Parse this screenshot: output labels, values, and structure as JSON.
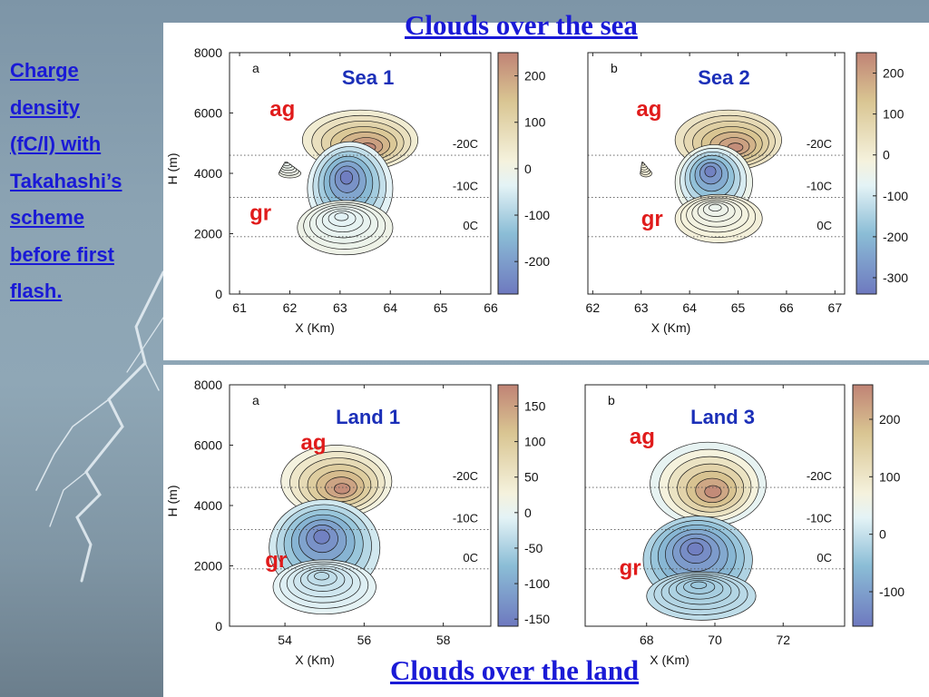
{
  "sidebar": {
    "title": "Charge\ndensity\n(fC/l) with\nTakahashi’s\nscheme\nbefore first\nflash."
  },
  "headings": {
    "top": "Clouds over the sea",
    "bottom": "Clouds over the land"
  },
  "chart_data": [
    {
      "type": "heatmap",
      "subplot_letter": "a",
      "label": "Sea 1",
      "xlabel": "X (Km)",
      "ylabel": "H (m)",
      "xlim": [
        60.8,
        66.0
      ],
      "ylim": [
        0,
        8000
      ],
      "xticks": [
        61,
        62,
        63,
        64,
        65,
        66
      ],
      "yticks": [
        0,
        2000,
        4000,
        6000,
        8000
      ],
      "colorbar": {
        "min": -270,
        "max": 250,
        "ticks": [
          -200,
          -100,
          0,
          100,
          200
        ]
      },
      "isotherms": [
        {
          "label": "-20C",
          "height": 4600
        },
        {
          "label": "-10C",
          "height": 3200
        },
        {
          "label": "0C",
          "height": 1900
        }
      ],
      "annotations": [
        {
          "text": "ag",
          "x": 61.6,
          "y": 5900
        },
        {
          "text": "gr",
          "x": 61.2,
          "y": 2450
        }
      ],
      "regions": [
        {
          "sign": "positive",
          "cx": 63.4,
          "cy": 5100,
          "rx": 1.15,
          "ry": 1000,
          "peak": 240
        },
        {
          "sign": "negative",
          "cx": 63.2,
          "cy": 3500,
          "rx": 0.85,
          "ry": 1550,
          "peak": -260
        },
        {
          "sign": "negative",
          "cx": 63.1,
          "cy": 2200,
          "rx": 0.95,
          "ry": 900,
          "peak": -40
        },
        {
          "sign": "negative",
          "cx": 62.0,
          "cy": 4000,
          "rx": 0.22,
          "ry": 150,
          "peak": -20
        }
      ]
    },
    {
      "type": "heatmap",
      "subplot_letter": "b",
      "label": "Sea 2",
      "xlabel": "X (Km)",
      "ylabel": "",
      "xlim": [
        61.9,
        67.2
      ],
      "ylim": [
        0,
        8000
      ],
      "xticks": [
        62,
        63,
        64,
        65,
        66,
        67
      ],
      "yticks": [],
      "colorbar": {
        "min": -340,
        "max": 250,
        "ticks": [
          -300,
          -200,
          -100,
          0,
          100,
          200
        ]
      },
      "isotherms": [
        {
          "label": "-20C",
          "height": 4600
        },
        {
          "label": "-10C",
          "height": 3200
        },
        {
          "label": "0C",
          "height": 1900
        }
      ],
      "annotations": [
        {
          "text": "ag",
          "x": 62.9,
          "y": 5900
        },
        {
          "text": "gr",
          "x": 63.0,
          "y": 2250
        }
      ],
      "regions": [
        {
          "sign": "positive",
          "cx": 64.8,
          "cy": 5100,
          "rx": 1.1,
          "ry": 1000,
          "peak": 230
        },
        {
          "sign": "negative",
          "cx": 64.5,
          "cy": 3700,
          "rx": 0.8,
          "ry": 1250,
          "peak": -320
        },
        {
          "sign": "negative",
          "cx": 64.6,
          "cy": 2500,
          "rx": 0.9,
          "ry": 800,
          "peak": -50
        },
        {
          "sign": "negative",
          "cx": 63.1,
          "cy": 4000,
          "rx": 0.12,
          "ry": 120,
          "peak": -20
        }
      ]
    },
    {
      "type": "heatmap",
      "subplot_letter": "a",
      "label": "Land 1",
      "xlabel": "X (Km)",
      "ylabel": "H (m)",
      "xlim": [
        52.6,
        59.2
      ],
      "ylim": [
        0,
        8000
      ],
      "xticks": [
        54,
        56,
        58
      ],
      "yticks": [
        0,
        2000,
        4000,
        6000,
        8000
      ],
      "colorbar": {
        "min": -160,
        "max": 180,
        "ticks": [
          -150,
          -100,
          -50,
          0,
          50,
          100,
          150
        ]
      },
      "isotherms": [
        {
          "label": "-20C",
          "height": 4600
        },
        {
          "label": "-10C",
          "height": 3200
        },
        {
          "label": "0C",
          "height": 1900
        }
      ],
      "annotations": [
        {
          "text": "ag",
          "x": 54.4,
          "y": 5850
        },
        {
          "text": "gr",
          "x": 53.5,
          "y": 1950
        }
      ],
      "regions": [
        {
          "sign": "positive",
          "cx": 55.3,
          "cy": 4800,
          "rx": 1.4,
          "ry": 1200,
          "peak": 170
        },
        {
          "sign": "negative",
          "cx": 55.0,
          "cy": 2600,
          "rx": 1.4,
          "ry": 1600,
          "peak": -150
        },
        {
          "sign": "negative",
          "cx": 55.0,
          "cy": 1300,
          "rx": 1.3,
          "ry": 900,
          "peak": -40
        }
      ]
    },
    {
      "type": "heatmap",
      "subplot_letter": "b",
      "label": "Land 3",
      "xlabel": "X (Km)",
      "ylabel": "",
      "xlim": [
        66.2,
        73.8
      ],
      "ylim": [
        0,
        8000
      ],
      "xticks": [
        68,
        70,
        72
      ],
      "yticks": [],
      "colorbar": {
        "min": -160,
        "max": 260,
        "ticks": [
          -100,
          0,
          100,
          200
        ]
      },
      "isotherms": [
        {
          "label": "-20C",
          "height": 4600
        },
        {
          "label": "-10C",
          "height": 3200
        },
        {
          "label": "0C",
          "height": 1900
        }
      ],
      "annotations": [
        {
          "text": "ag",
          "x": 67.5,
          "y": 6050
        },
        {
          "text": "gr",
          "x": 67.2,
          "y": 1700
        }
      ],
      "regions": [
        {
          "sign": "positive",
          "cx": 69.8,
          "cy": 4700,
          "rx": 1.7,
          "ry": 1400,
          "peak": 250
        },
        {
          "sign": "negative",
          "cx": 69.5,
          "cy": 2200,
          "rx": 1.6,
          "ry": 1450,
          "peak": -150
        },
        {
          "sign": "negative",
          "cx": 69.6,
          "cy": 1000,
          "rx": 1.6,
          "ry": 800,
          "peak": -40
        }
      ]
    }
  ]
}
